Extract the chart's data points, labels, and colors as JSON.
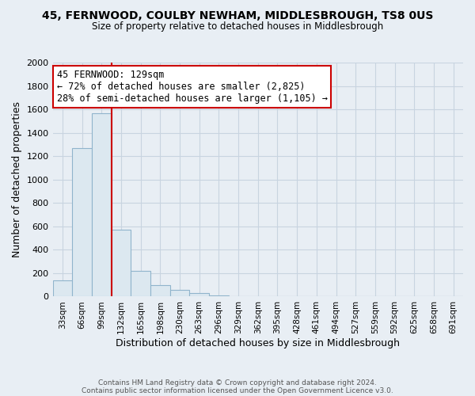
{
  "title_line1": "45, FERNWOOD, COULBY NEWHAM, MIDDLESBROUGH, TS8 0US",
  "title_line2": "Size of property relative to detached houses in Middlesbrough",
  "xlabel": "Distribution of detached houses by size in Middlesbrough",
  "ylabel": "Number of detached properties",
  "bar_labels": [
    "33sqm",
    "66sqm",
    "99sqm",
    "132sqm",
    "165sqm",
    "198sqm",
    "230sqm",
    "263sqm",
    "296sqm",
    "329sqm",
    "362sqm",
    "395sqm",
    "428sqm",
    "461sqm",
    "494sqm",
    "527sqm",
    "559sqm",
    "592sqm",
    "625sqm",
    "658sqm",
    "691sqm"
  ],
  "bar_values": [
    140,
    1270,
    1570,
    570,
    220,
    95,
    55,
    30,
    10,
    0,
    0,
    0,
    0,
    0,
    0,
    0,
    0,
    0,
    0,
    0,
    0
  ],
  "bar_color": "#dce8f0",
  "bar_edge_color": "#90b4cc",
  "vline_color": "#cc0000",
  "ylim": [
    0,
    2000
  ],
  "yticks": [
    0,
    200,
    400,
    600,
    800,
    1000,
    1200,
    1400,
    1600,
    1800,
    2000
  ],
  "annotation_title": "45 FERNWOOD: 129sqm",
  "annotation_line1": "← 72% of detached houses are smaller (2,825)",
  "annotation_line2": "28% of semi-detached houses are larger (1,105) →",
  "annotation_box_facecolor": "#ffffff",
  "annotation_box_edgecolor": "#cc0000",
  "footer_line1": "Contains HM Land Registry data © Crown copyright and database right 2024.",
  "footer_line2": "Contains public sector information licensed under the Open Government Licence v3.0.",
  "background_color": "#e8eef4"
}
